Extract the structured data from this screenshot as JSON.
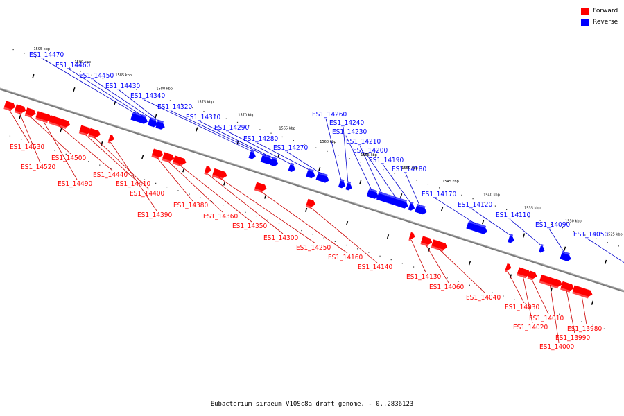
{
  "legend": [
    {
      "label": "Forward",
      "color": "#ff0000"
    },
    {
      "label": "Reverse",
      "color": "#0000ff"
    }
  ],
  "caption": "Eubacterium siraeum V10Sc8a draft genome. - 0..2836123",
  "colors": {
    "forward": "#ff0000",
    "reverse": "#0000ff",
    "axis": "#7a7a7a",
    "leader_forward": "#cc0000",
    "leader_reverse": "#0000cc"
  },
  "track": {
    "start_kbp": 1525,
    "end_kbp": 1595,
    "ruler_labels": [
      "1525 kbp",
      "1530 kbp",
      "1535 kbp",
      "1540 kbp",
      "1545 kbp",
      "1550 kbp",
      "1555 kbp",
      "1560 kbp",
      "1565 kbp",
      "1570 kbp",
      "1575 kbp",
      "1580 kbp",
      "1585 kbp",
      "1590 kbp",
      "1595 kbp"
    ]
  },
  "genes": {
    "forward": [
      "ES1_14530",
      "ES1_14520",
      "ES1_14500",
      "ES1_14490",
      "ES1_14440",
      "ES1_14410",
      "ES1_14400",
      "ES1_14390",
      "ES1_14380",
      "ES1_14360",
      "ES1_14350",
      "ES1_14300",
      "ES1_14250",
      "ES1_14160",
      "ES1_14140",
      "ES1_14130",
      "ES1_14060",
      "ES1_14040",
      "ES1_14030",
      "ES1_14020",
      "ES1_14010",
      "ES1_14000",
      "ES1_13990",
      "ES1_13980"
    ],
    "reverse": [
      "ES1_14470",
      "ES1_14460",
      "ES1_14450",
      "ES1_14430",
      "ES1_14340",
      "ES1_14320",
      "ES1_14310",
      "ES1_14290",
      "ES1_14280",
      "ES1_14270",
      "ES1_14260",
      "ES1_14240",
      "ES1_14230",
      "ES1_14210",
      "ES1_14200",
      "ES1_14190",
      "ES1_14180",
      "ES1_14170",
      "ES1_14120",
      "ES1_14110",
      "ES1_14090",
      "ES1_14050"
    ]
  }
}
